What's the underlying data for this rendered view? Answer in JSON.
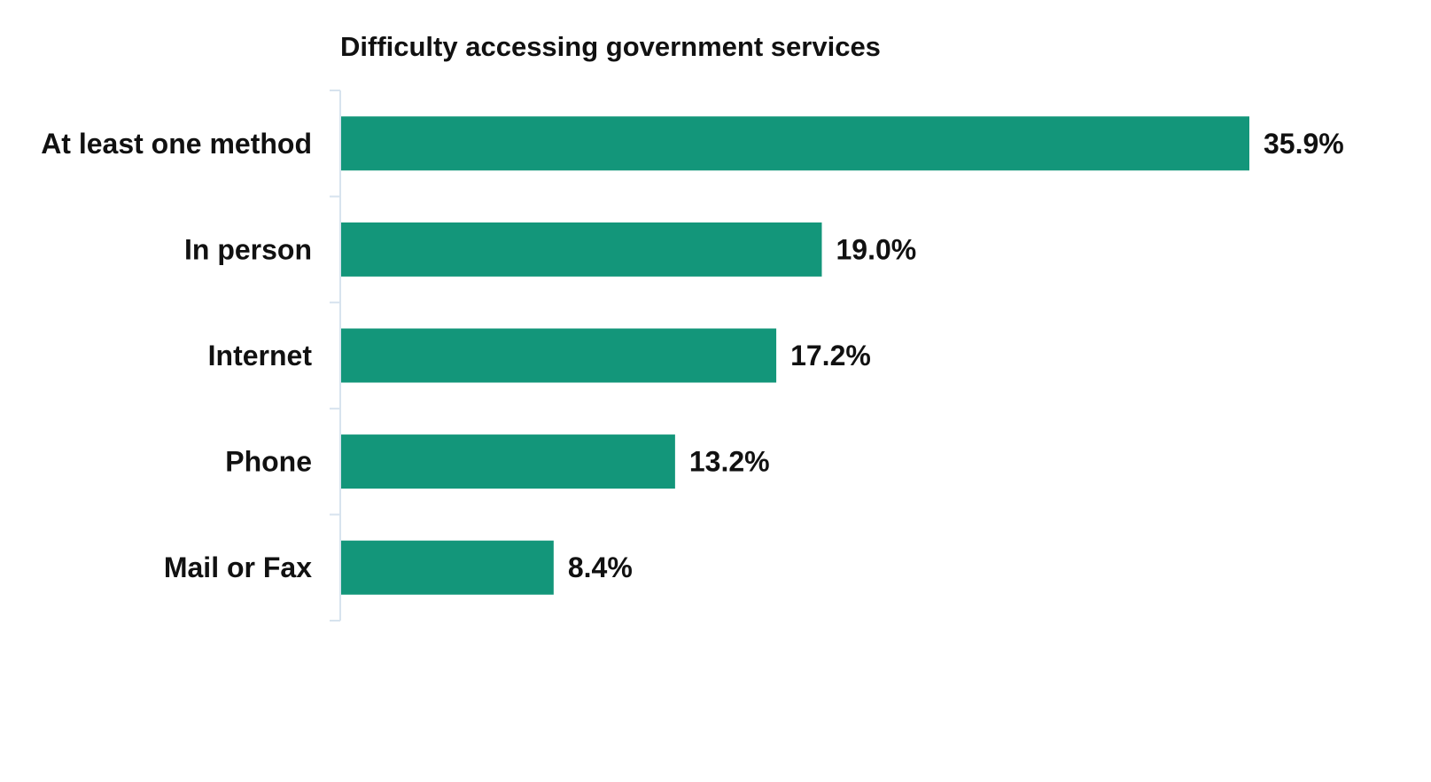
{
  "chart_data": {
    "type": "bar",
    "orientation": "horizontal",
    "title": "Difficulty accessing government services",
    "categories": [
      "At least one method",
      "In person",
      "Internet",
      "Phone",
      "Mail or Fax"
    ],
    "values": [
      35.9,
      19.0,
      17.2,
      13.2,
      8.4
    ],
    "value_labels": [
      "35.9%",
      "19.0%",
      "17.2%",
      "13.2%",
      "8.4%"
    ],
    "unit": "%",
    "xlim": [
      0,
      35.9
    ],
    "grid": false,
    "legend": "none",
    "bar_color": "#13967a",
    "axis_color": "#d7e3ee"
  }
}
